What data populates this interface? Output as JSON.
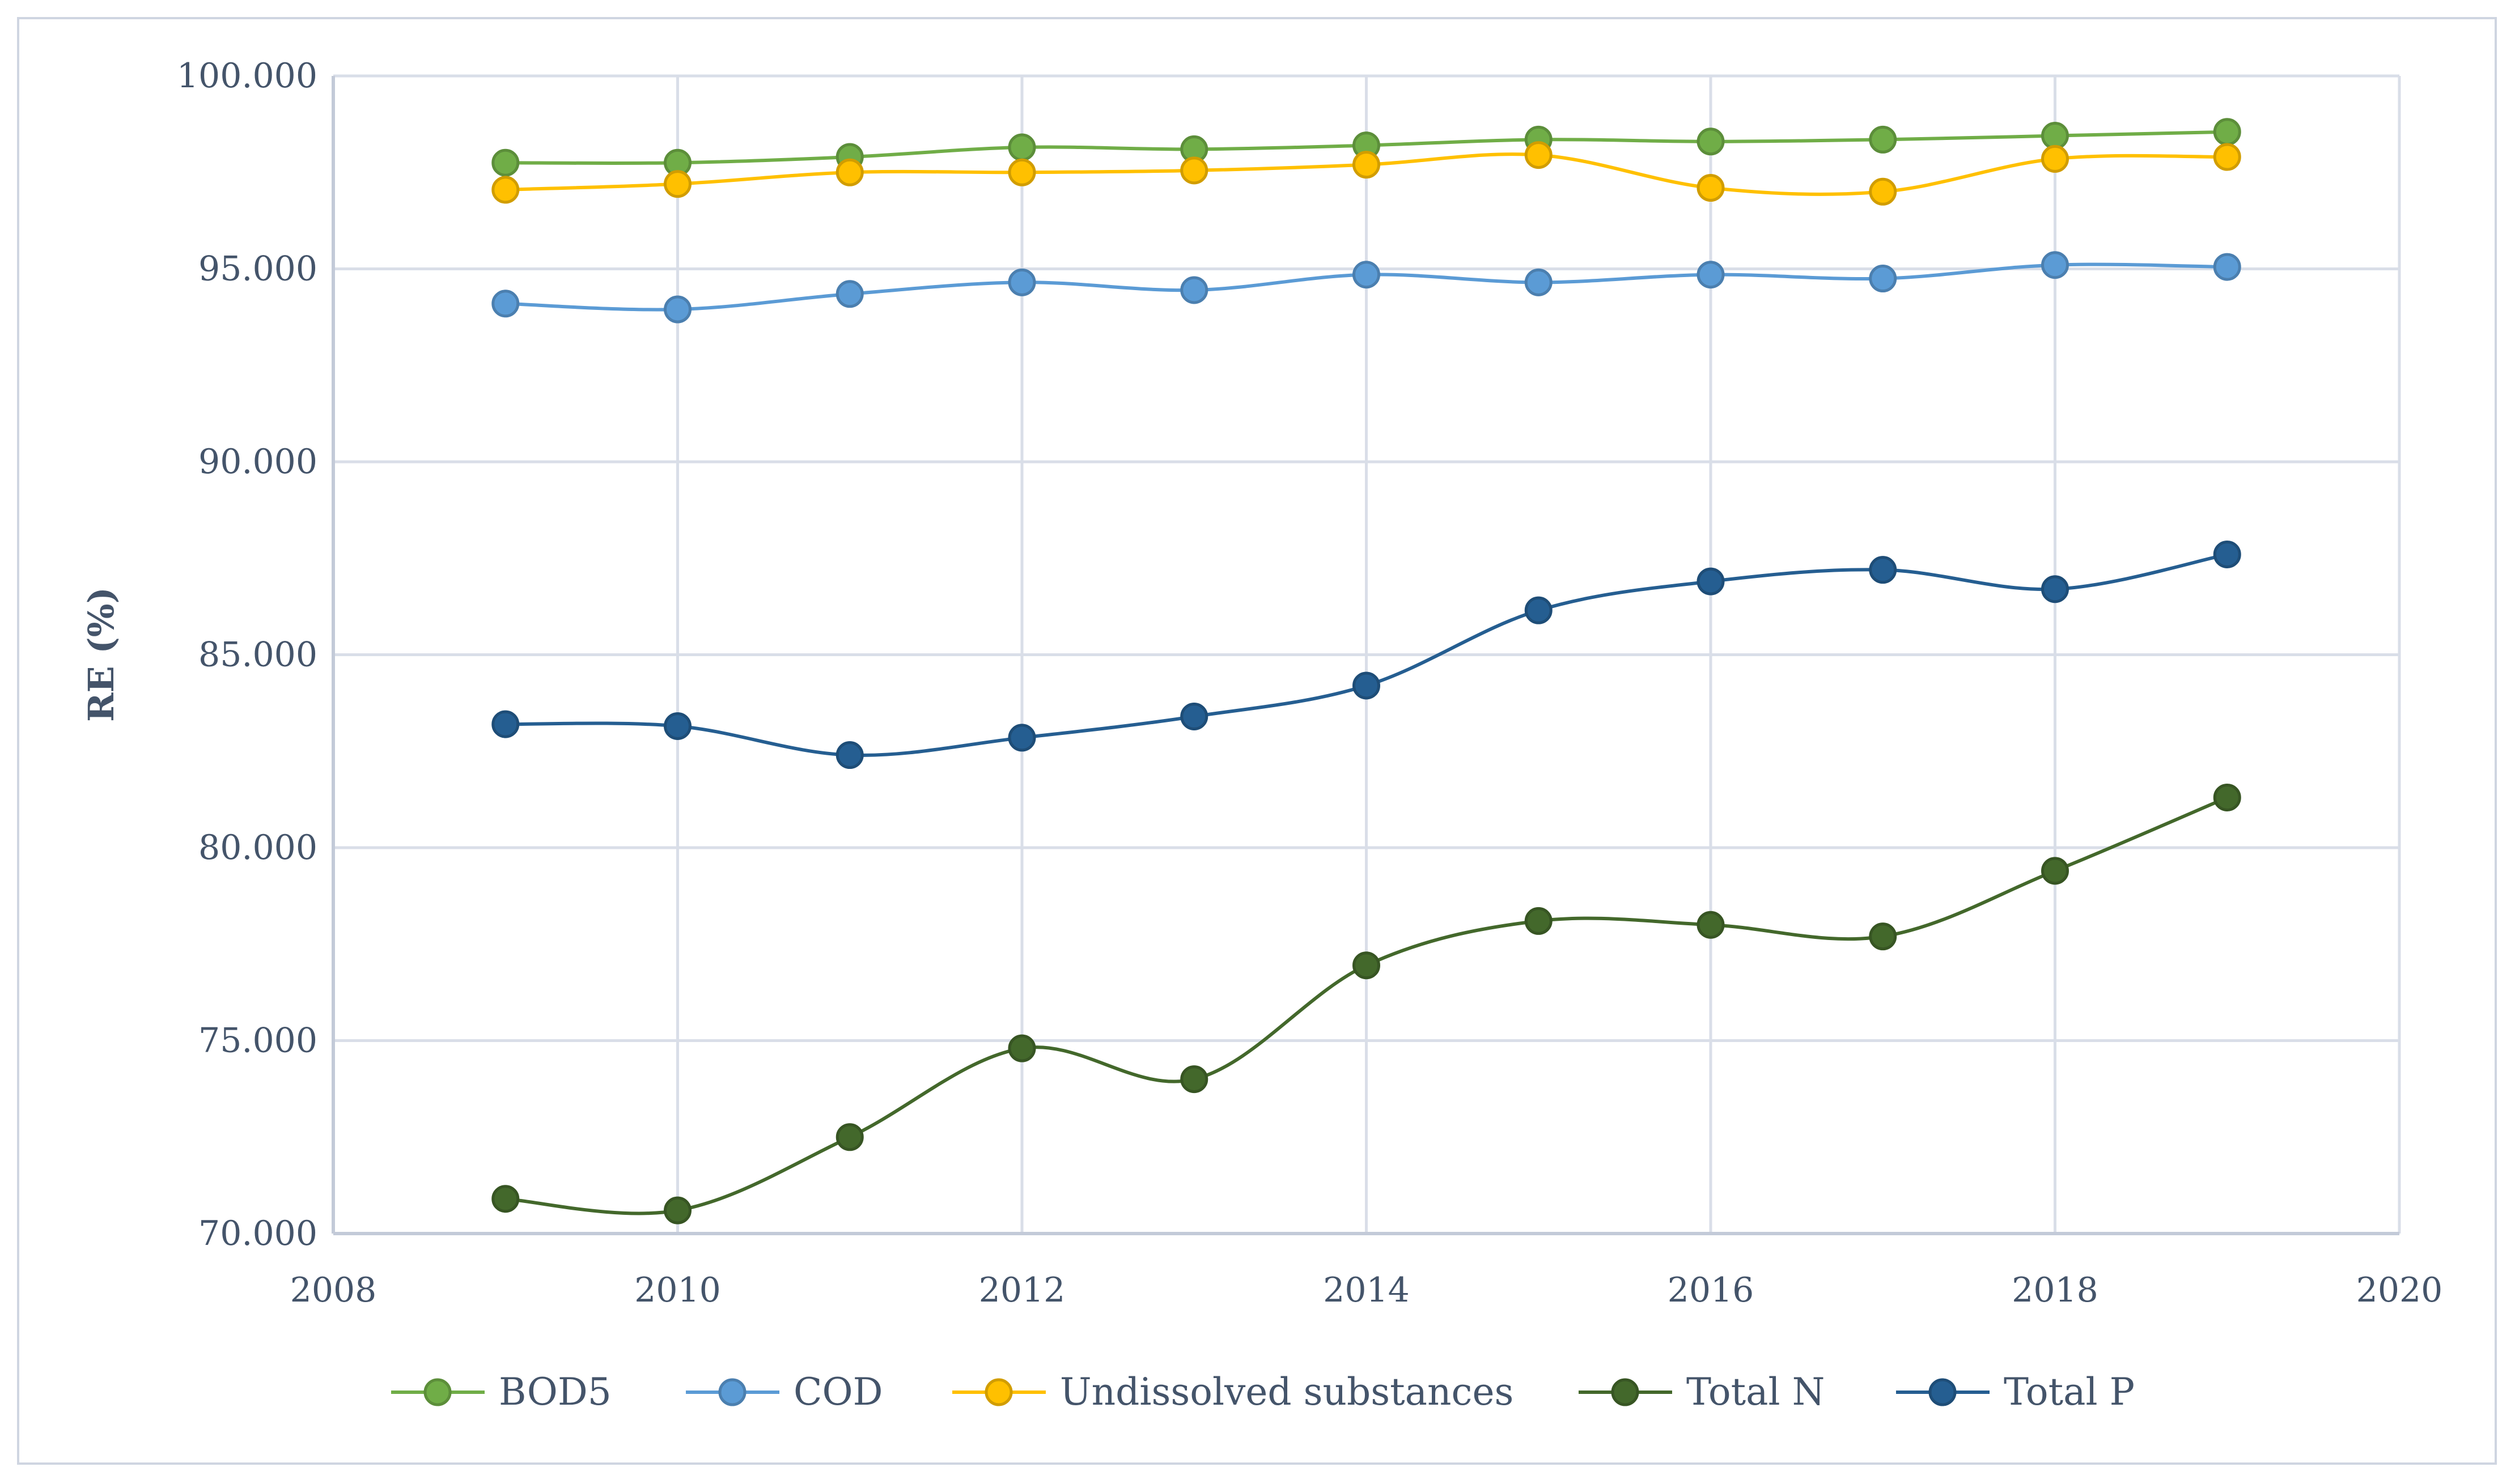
{
  "chart_data": {
    "type": "line",
    "title": "",
    "xlabel": "",
    "ylabel": "RE (%)",
    "xlim": [
      2008,
      2020
    ],
    "ylim": [
      70,
      100
    ],
    "x_ticks": [
      "2008",
      "2010",
      "2012",
      "2014",
      "2016",
      "2018",
      "2020"
    ],
    "y_ticks": [
      "70.000",
      "75.000",
      "80.000",
      "85.000",
      "90.000",
      "95.000",
      "100.000"
    ],
    "grid": true,
    "legend_position": "bottom",
    "smooth": true,
    "x": [
      2009,
      2010,
      2011,
      2012,
      2013,
      2014,
      2015,
      2016,
      2017,
      2018,
      2019
    ],
    "series": [
      {
        "name": "BOD5",
        "color": "#70ad47",
        "values": [
          97.75,
          97.75,
          97.9,
          98.15,
          98.1,
          98.2,
          98.35,
          98.3,
          98.35,
          98.45,
          98.55
        ]
      },
      {
        "name": "COD",
        "color": "#5b9bd5",
        "values": [
          94.1,
          93.95,
          94.35,
          94.65,
          94.45,
          94.85,
          94.65,
          94.85,
          94.75,
          95.1,
          95.05
        ]
      },
      {
        "name": "Undissolved substances",
        "color": "#ffc000",
        "values": [
          97.05,
          97.2,
          97.5,
          97.5,
          97.55,
          97.7,
          97.95,
          97.1,
          97.0,
          97.85,
          97.9
        ]
      },
      {
        "name": "Total N",
        "color": "#43682b",
        "values": [
          70.9,
          70.6,
          72.5,
          74.8,
          74.0,
          76.95,
          78.1,
          78.0,
          77.7,
          79.4,
          81.3
        ]
      },
      {
        "name": "Total P",
        "color": "#255e91",
        "values": [
          83.2,
          83.15,
          82.4,
          82.85,
          83.4,
          84.2,
          86.15,
          86.9,
          87.2,
          86.7,
          87.6
        ]
      }
    ]
  }
}
